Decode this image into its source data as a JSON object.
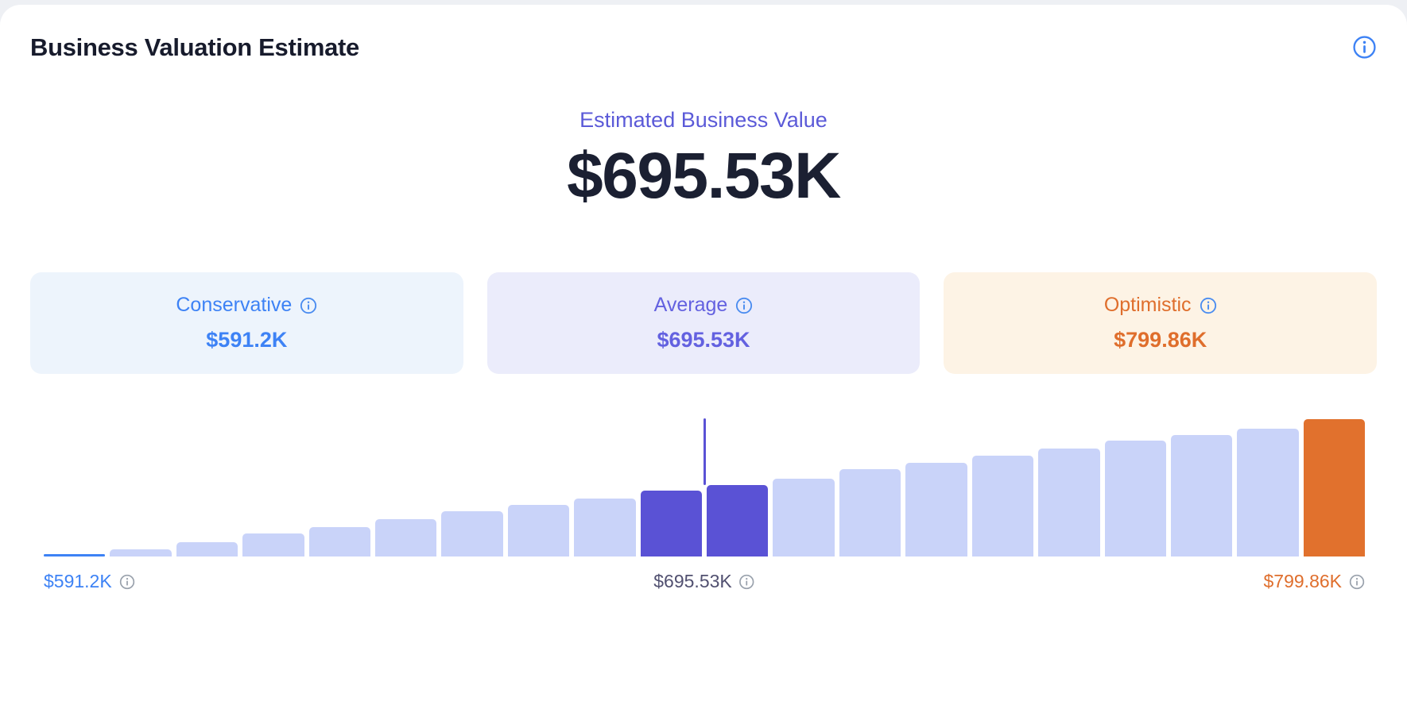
{
  "header": {
    "title": "Business Valuation Estimate"
  },
  "estimate": {
    "label": "Estimated Business Value",
    "value": "$695.53K"
  },
  "cards": [
    {
      "label": "Conservative",
      "value": "$591.2K",
      "bg": "#edf4fc",
      "color": "#3d82f5"
    },
    {
      "label": "Average",
      "value": "$695.53K",
      "bg": "#ebecfb",
      "color": "#6361e0"
    },
    {
      "label": "Optimistic",
      "value": "$799.86K",
      "bg": "#fdf3e5",
      "color": "#df6e2c"
    }
  ],
  "chart_data": {
    "type": "bar",
    "title": "",
    "x_labels": [
      "$591.2K",
      "$695.53K",
      "$799.86K"
    ],
    "xlim": [
      "$591.2K",
      "$799.86K"
    ],
    "values": [
      2,
      9,
      18,
      29,
      37,
      47,
      57,
      65,
      73,
      83,
      90,
      98,
      110,
      118,
      127,
      136,
      146,
      153,
      161,
      173
    ],
    "values_unit": "relative-height-px",
    "highlight_indices": [
      9,
      10
    ],
    "accent_index": 19,
    "marker_position": "$695.53K",
    "grid": false,
    "legend": false,
    "colors": {
      "base": "#c9d3f9",
      "highlight": "#5a52d5",
      "accent": "#e1712d",
      "marker": "#5a52d5",
      "min_underline": "#3d82f5"
    }
  },
  "axis": {
    "min": {
      "value": "$591.2K",
      "color": "#3d82f5"
    },
    "mid": {
      "value": "$695.53K",
      "color": "#515070"
    },
    "max": {
      "value": "$799.86K",
      "color": "#df6e2c"
    }
  }
}
